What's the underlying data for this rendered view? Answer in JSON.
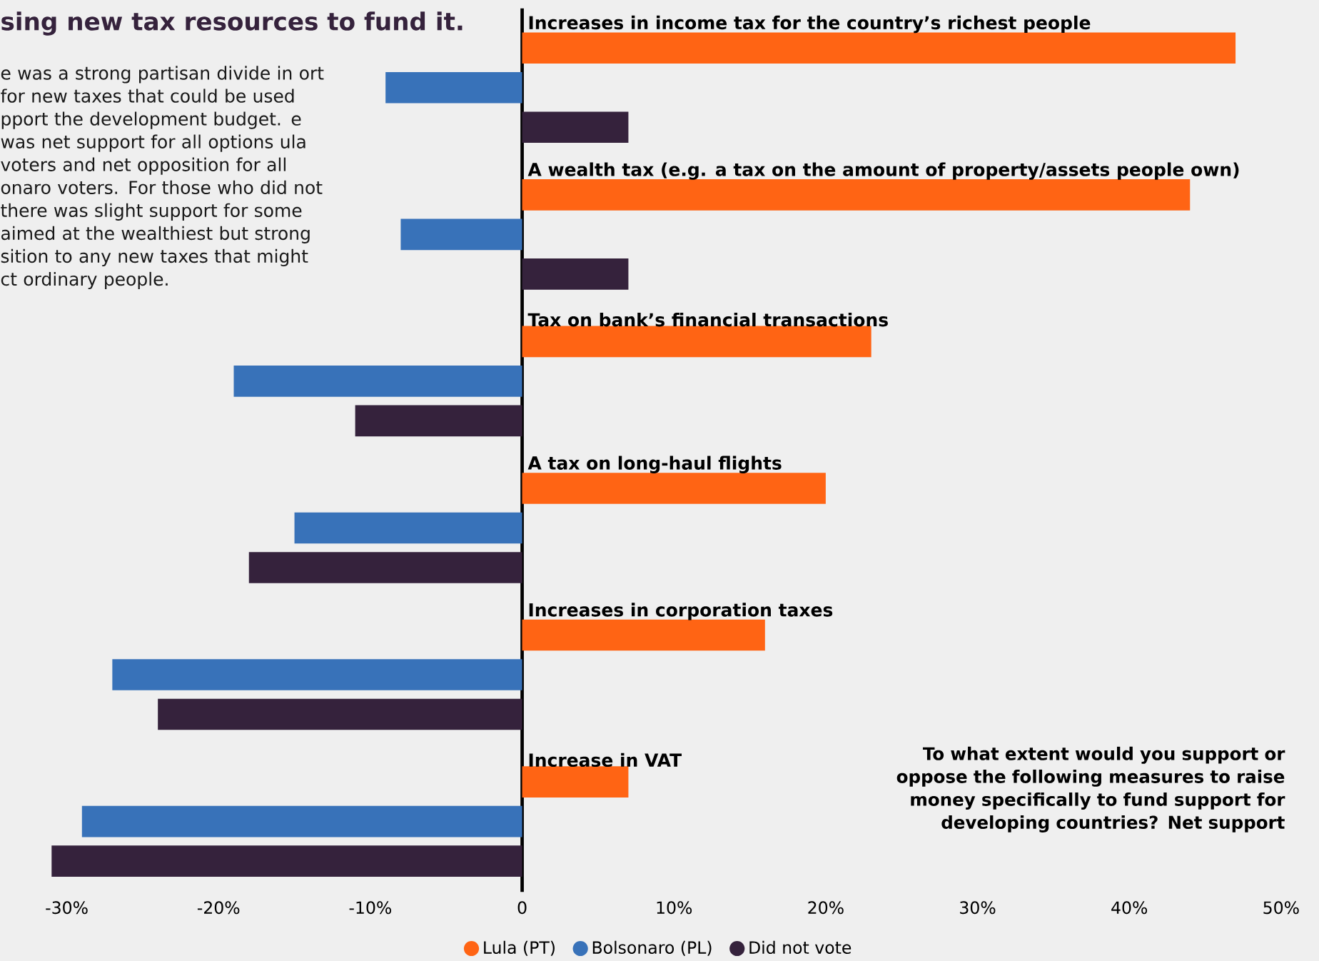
{
  "chart_data": {
    "type": "bar",
    "orientation": "horizontal",
    "title": "sing new tax resources to fund it.",
    "subtitle": "e was a strong partisan divide in ort for new taxes that could be used pport the development budget. e was net support for all options ula voters and net opposition for all onaro voters. For those who did not there was slight support for some aimed at the wealthiest but strong sition to any new taxes that might ct ordinary people.",
    "annotations": [
      "To what extent would you support or oppose the following measures to raise money specifically to fund support for developing countries? Net support"
    ],
    "categories": [
      "Increases in income tax for the country’s richest people",
      "A wealth tax (e.g. a tax on the amount of property/assets people own)",
      "Tax on bank’s financial transactions",
      "A tax on long-haul flights",
      "Increases in corporation taxes",
      "Increase in VAT"
    ],
    "series": [
      {
        "name": "Lula (PT)",
        "color": "#ff6414",
        "values": [
          47,
          44,
          23,
          20,
          16,
          7
        ]
      },
      {
        "name": "Bolsonaro (PL)",
        "color": "#3872b9",
        "values": [
          -9,
          -8,
          -19,
          -15,
          -27,
          -29
        ]
      },
      {
        "name": "Did not vote",
        "color": "#35223c",
        "values": [
          7,
          7,
          -11,
          -18,
          -24,
          -31
        ]
      }
    ],
    "xlim": [
      -34.4,
      52.5
    ],
    "xticks": [
      {
        "value": -30,
        "label": "-30%"
      },
      {
        "value": -20,
        "label": "-20%"
      },
      {
        "value": -10,
        "label": "-10%"
      },
      {
        "value": 0,
        "label": "0"
      },
      {
        "value": 10,
        "label": "10%"
      },
      {
        "value": 20,
        "label": "20%"
      },
      {
        "value": 30,
        "label": "30%"
      },
      {
        "value": 40,
        "label": "40%"
      },
      {
        "value": 50,
        "label": "50%"
      }
    ],
    "grid": false,
    "legend": "bottom"
  }
}
